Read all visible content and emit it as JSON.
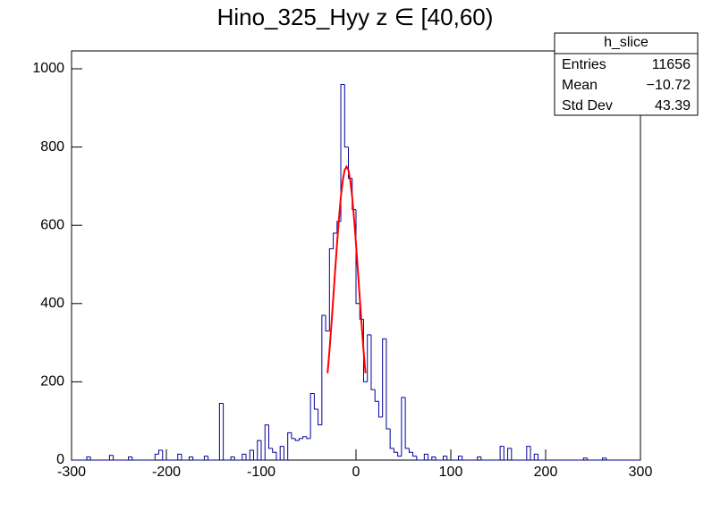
{
  "chart_data": {
    "type": "histogram",
    "title": "Hino_325_Hyy z  ∈ [40,60)",
    "color": "#000099",
    "bins": [
      -300,
      -296,
      -292,
      -288,
      -284,
      -280,
      -276,
      -272,
      -268,
      -264,
      -260,
      -256,
      -252,
      -248,
      -244,
      -240,
      -236,
      -232,
      -228,
      -224,
      -220,
      -216,
      -212,
      -208,
      -204,
      -200,
      -196,
      -192,
      -188,
      -184,
      -180,
      -176,
      -172,
      -168,
      -164,
      -160,
      -156,
      -152,
      -148,
      -144,
      -140,
      -136,
      -132,
      -128,
      -124,
      -120,
      -116,
      -112,
      -108,
      -104,
      -100,
      -96,
      -92,
      -88,
      -84,
      -80,
      -76,
      -72,
      -68,
      -64,
      -60,
      -56,
      -52,
      -48,
      -44,
      -40,
      -36,
      -32,
      -28,
      -24,
      -20,
      -16,
      -12,
      -8,
      -4,
      0,
      4,
      8,
      12,
      16,
      20,
      24,
      28,
      32,
      36,
      40,
      44,
      48,
      52,
      56,
      60,
      64,
      68,
      72,
      76,
      80,
      84,
      88,
      92,
      96,
      100,
      104,
      108,
      112,
      116,
      120,
      124,
      128,
      132,
      136,
      140,
      144,
      148,
      152,
      156,
      160,
      164,
      168,
      172,
      176,
      180,
      184,
      188,
      192,
      196,
      200,
      204,
      208,
      212,
      216,
      220,
      224,
      228,
      232,
      236,
      240,
      244,
      248,
      252,
      256,
      260,
      264,
      268,
      272,
      276,
      280,
      284,
      288,
      292,
      296,
      300
    ],
    "values": [
      0,
      0,
      0,
      0,
      8,
      0,
      0,
      0,
      0,
      0,
      12,
      0,
      0,
      0,
      0,
      8,
      0,
      0,
      0,
      0,
      0,
      0,
      15,
      25,
      0,
      0,
      0,
      0,
      15,
      0,
      0,
      8,
      0,
      0,
      0,
      10,
      0,
      0,
      0,
      145,
      0,
      0,
      8,
      0,
      0,
      15,
      0,
      25,
      0,
      50,
      0,
      90,
      30,
      20,
      0,
      35,
      0,
      70,
      55,
      50,
      55,
      60,
      55,
      170,
      130,
      90,
      370,
      330,
      540,
      580,
      610,
      960,
      800,
      720,
      640,
      400,
      360,
      200,
      320,
      180,
      150,
      110,
      310,
      80,
      30,
      20,
      10,
      160,
      30,
      20,
      10,
      0,
      0,
      15,
      0,
      8,
      0,
      0,
      10,
      0,
      0,
      0,
      10,
      0,
      0,
      0,
      0,
      8,
      0,
      0,
      0,
      0,
      0,
      35,
      0,
      30,
      0,
      0,
      0,
      0,
      35,
      0,
      15,
      0,
      0,
      0,
      0,
      0,
      0,
      0,
      0,
      0,
      0,
      0,
      0,
      5,
      0,
      0,
      0,
      0,
      5,
      0,
      0,
      0,
      0,
      0,
      0,
      0,
      0,
      0
    ],
    "fit": {
      "color": "#ff0000",
      "x": [
        -30,
        -28,
        -26,
        -24,
        -22,
        -20,
        -18,
        -16,
        -14,
        -12,
        -10,
        -8,
        -6,
        -4,
        -2,
        0,
        2,
        4,
        6,
        8,
        10
      ],
      "values": [
        222,
        279,
        344,
        413,
        484,
        553,
        617,
        672,
        714,
        741,
        750,
        741,
        714,
        672,
        617,
        553,
        484,
        413,
        344,
        279,
        222
      ]
    },
    "xlim": [
      -300,
      300
    ],
    "xticks": [
      -300,
      -200,
      -100,
      0,
      100,
      200,
      300
    ],
    "ylim": [
      0,
      1000
    ],
    "yticks": [
      0,
      200,
      400,
      600,
      800,
      1000
    ],
    "stats": {
      "title": "h_slice",
      "rows": [
        [
          "Entries",
          "11656"
        ],
        [
          "Mean",
          "−10.72"
        ],
        [
          "Std Dev",
          "43.39"
        ]
      ]
    }
  }
}
